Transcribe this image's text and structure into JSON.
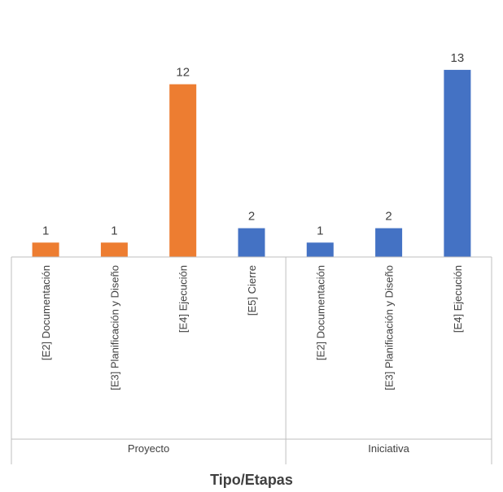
{
  "chart_data": {
    "type": "bar",
    "xlabel": "Tipo/Etapas",
    "ylabel": "",
    "ylim": [
      0,
      14
    ],
    "grid": false,
    "legend": "none",
    "groups": [
      {
        "name": "Proyecto",
        "bars": [
          {
            "category": "[E2] Documentación",
            "value": 1,
            "color": "#ed7d31"
          },
          {
            "category": "[E3] Planificación y Diseño",
            "value": 1,
            "color": "#ed7d31"
          },
          {
            "category": "[E4] Ejecución",
            "value": 12,
            "color": "#ed7d31"
          },
          {
            "category": "[E5] Cierre",
            "value": 2,
            "color": "#4472c4"
          }
        ]
      },
      {
        "name": "Iniciativa",
        "bars": [
          {
            "category": "[E2] Documentación",
            "value": 1,
            "color": "#4472c4"
          },
          {
            "category": "[E3] Planificación y Diseño",
            "value": 2,
            "color": "#4472c4"
          },
          {
            "category": "[E4] Ejecución",
            "value": 13,
            "color": "#4472c4"
          }
        ]
      }
    ]
  }
}
